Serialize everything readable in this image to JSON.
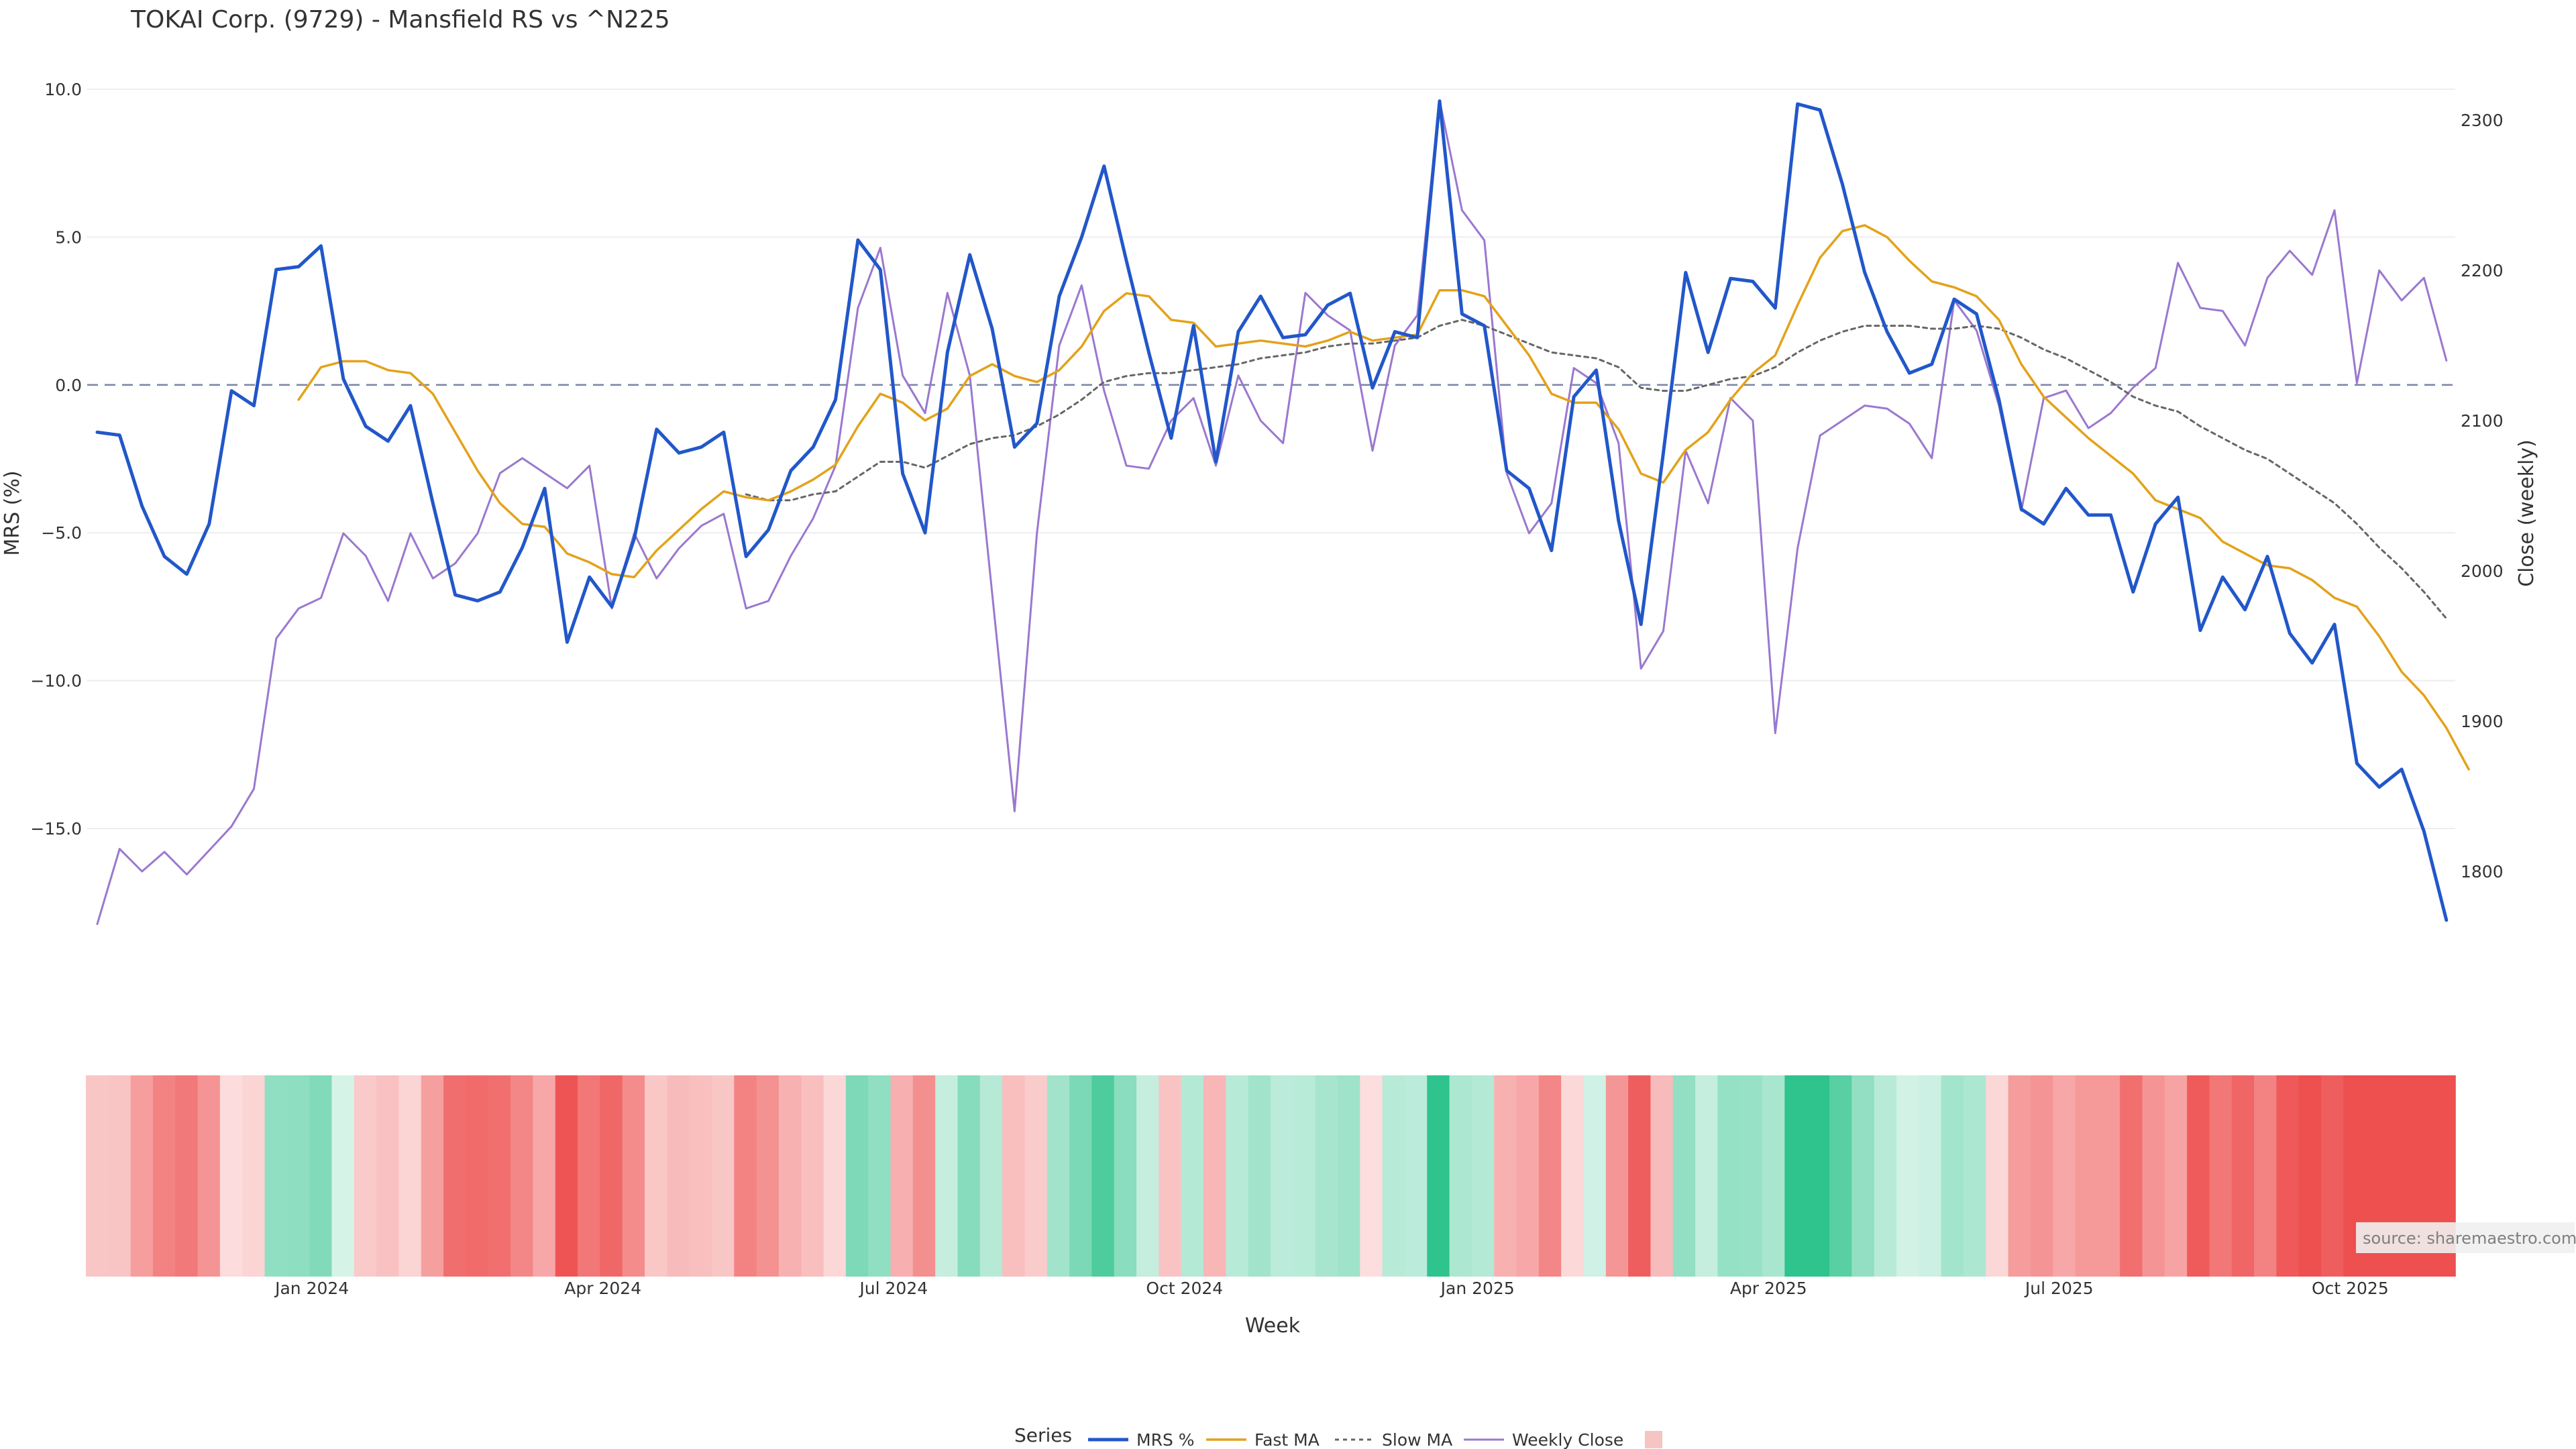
{
  "chart_data": {
    "type": "line",
    "title": "TOKAI Corp. (9729) - Mansfield RS vs ^N225",
    "xlabel": "Week",
    "y_left_label": "MRS (%)",
    "y_right_label": "Close (weekly)",
    "y_left_ticks": [
      10.0,
      5.0,
      0.0,
      -5.0,
      -10.0,
      -15.0
    ],
    "y_left_tick_labels": [
      "10.0",
      "5.0",
      "0.0",
      "−5.0",
      "−10.0",
      "−15.0"
    ],
    "y_left_range": [
      -18.7,
      10.3
    ],
    "y_right_ticks": [
      2300,
      2200,
      2100,
      2000,
      1900,
      1800
    ],
    "y_right_range": [
      1750,
      2320
    ],
    "x_tick_labels": [
      "Jan 2024",
      "Apr 2024",
      "Jul 2024",
      "Oct 2024",
      "Jan 2025",
      "Apr 2025",
      "Jul 2025",
      "Oct 2025"
    ],
    "x_tick_weeks": [
      9.6,
      22.6,
      35.6,
      48.6,
      61.7,
      74.7,
      87.7,
      100.7
    ],
    "zero_line": 0,
    "grid": true,
    "legend_title": "Series",
    "legend_position": "bottom",
    "source_text": "source: sharemaestro.com",
    "colors": {
      "mrs": "#2257c9",
      "fast_ma": "#e3a21a",
      "slow_ma": "#666666",
      "weekly_close": "#9a78cf",
      "zero_line": "#7a84a6",
      "grid": "#eeeeee",
      "heat_positive": "#2fc38d",
      "heat_negative": "#ee4f4f"
    },
    "series": [
      {
        "name": "MRS %",
        "axis": "left",
        "values": [
          -1.6,
          -1.7,
          -4.1,
          -5.8,
          -6.4,
          -4.7,
          -0.2,
          -0.7,
          3.9,
          4.0,
          4.7,
          0.2,
          -1.4,
          -1.9,
          -0.7,
          -4.0,
          -7.1,
          -7.3,
          -7.0,
          -5.5,
          -3.5,
          -8.7,
          -6.5,
          -7.5,
          -5.2,
          -1.5,
          -2.3,
          -2.1,
          -1.6,
          -5.8,
          -4.9,
          -2.9,
          -2.1,
          -0.5,
          4.9,
          3.9,
          -3.0,
          -5.0,
          1.1,
          4.4,
          1.9,
          -2.1,
          -1.3,
          3.0,
          5.0,
          7.4,
          4.2,
          1.1,
          -1.8,
          2.0,
          -2.6,
          1.8,
          3.0,
          1.6,
          1.7,
          2.7,
          3.1,
          -0.1,
          1.8,
          1.6,
          9.6,
          2.4,
          2.0,
          -2.9,
          -3.5,
          -5.6,
          -0.4,
          0.5,
          -4.6,
          -8.1,
          -2.3,
          3.8,
          1.1,
          3.6,
          3.5,
          2.6,
          9.5,
          9.3,
          6.8,
          3.8,
          1.8,
          0.4,
          0.7,
          2.9,
          2.4,
          -0.5,
          -4.2,
          -4.7,
          -3.5,
          -4.4,
          -4.4,
          -7.0,
          -4.7,
          -3.8,
          -8.3,
          -6.5,
          -7.6,
          -5.8,
          -8.4,
          -9.4,
          -8.1,
          -12.8,
          -13.6,
          -13.0,
          -15.1,
          -18.1
        ]
      },
      {
        "name": "Fast MA",
        "axis": "left",
        "values": [
          null,
          null,
          null,
          null,
          null,
          null,
          null,
          null,
          null,
          -0.5,
          0.6,
          0.8,
          0.8,
          0.5,
          0.4,
          -0.3,
          -1.6,
          -2.9,
          -4.0,
          -4.7,
          -4.8,
          -5.7,
          -6.0,
          -6.4,
          -6.5,
          -5.6,
          -4.9,
          -4.2,
          -3.6,
          -3.8,
          -3.9,
          -3.6,
          -3.2,
          -2.7,
          -1.4,
          -0.3,
          -0.6,
          -1.2,
          -0.8,
          0.3,
          0.7,
          0.3,
          0.1,
          0.5,
          1.3,
          2.5,
          3.1,
          3.0,
          2.2,
          2.1,
          1.3,
          1.4,
          1.5,
          1.4,
          1.3,
          1.5,
          1.8,
          1.5,
          1.6,
          1.7,
          3.2,
          3.2,
          3.0,
          2.0,
          1.0,
          -0.3,
          -0.6,
          -0.6,
          -1.5,
          -3.0,
          -3.3,
          -2.2,
          -1.6,
          -0.5,
          0.4,
          1.0,
          2.7,
          4.3,
          5.2,
          5.4,
          5.0,
          4.2,
          3.5,
          3.3,
          3.0,
          2.2,
          0.7,
          -0.4,
          -1.1,
          -1.8,
          -2.4,
          -3.0,
          -3.9,
          -4.2,
          -4.5,
          -5.3,
          -5.7,
          -6.1,
          -6.2,
          -6.6,
          -7.2,
          -7.5,
          -8.5,
          -9.7,
          -10.5,
          -11.6,
          -13.0
        ]
      },
      {
        "name": "Slow MA",
        "axis": "left",
        "values": [
          null,
          null,
          null,
          null,
          null,
          null,
          null,
          null,
          null,
          null,
          null,
          null,
          null,
          null,
          null,
          null,
          null,
          null,
          null,
          null,
          null,
          null,
          null,
          null,
          null,
          null,
          null,
          null,
          null,
          -3.7,
          -3.9,
          -3.9,
          -3.7,
          -3.6,
          -3.1,
          -2.6,
          -2.6,
          -2.8,
          -2.4,
          -2.0,
          -1.8,
          -1.7,
          -1.4,
          -1.0,
          -0.5,
          0.1,
          0.3,
          0.4,
          0.4,
          0.5,
          0.6,
          0.7,
          0.9,
          1.0,
          1.1,
          1.3,
          1.4,
          1.4,
          1.5,
          1.6,
          2.0,
          2.2,
          2.0,
          1.7,
          1.4,
          1.1,
          1.0,
          0.9,
          0.6,
          -0.1,
          -0.2,
          -0.2,
          0.0,
          0.2,
          0.3,
          0.6,
          1.1,
          1.5,
          1.8,
          2.0,
          2.0,
          2.0,
          1.9,
          1.9,
          2.0,
          1.9,
          1.6,
          1.2,
          0.9,
          0.5,
          0.1,
          -0.4,
          -0.7,
          -0.9,
          -1.4,
          -1.8,
          -2.2,
          -2.5,
          -3.0,
          -3.5,
          -4.0,
          -4.7,
          -5.5,
          -6.2,
          -7.0,
          -7.9
        ]
      },
      {
        "name": "Weekly Close",
        "axis": "right",
        "values": [
          1765,
          1815,
          1800,
          1813,
          1798,
          1814,
          1830,
          1855,
          1955,
          1975,
          1982,
          2025,
          2010,
          1980,
          2025,
          1995,
          2005,
          2025,
          2065,
          2075,
          2065,
          2055,
          2070,
          1975,
          2025,
          1995,
          2015,
          2030,
          2038,
          1975,
          1980,
          2010,
          2035,
          2070,
          2175,
          2215,
          2130,
          2105,
          2185,
          2130,
          1985,
          1840,
          2025,
          2150,
          2190,
          2120,
          2070,
          2068,
          2100,
          2115,
          2070,
          2130,
          2100,
          2085,
          2185,
          2170,
          2160,
          2080,
          2150,
          2170,
          2313,
          2240,
          2220,
          2065,
          2025,
          2045,
          2135,
          2125,
          2085,
          1935,
          1960,
          2080,
          2045,
          2115,
          2100,
          1892,
          2015,
          2090,
          2100,
          2110,
          2108,
          2098,
          2075,
          2180,
          2160,
          2110,
          2040,
          2115,
          2120,
          2095,
          2105,
          2122,
          2135,
          2205,
          2175,
          2173,
          2150,
          2195,
          2213,
          2197,
          2240,
          2125,
          2200,
          2180,
          2195,
          2140
        ]
      }
    ],
    "heatmap_strip": {
      "description_value": "MRS %",
      "values_note": "one colored cell per week, tinted by the weekly MRS %"
    }
  }
}
